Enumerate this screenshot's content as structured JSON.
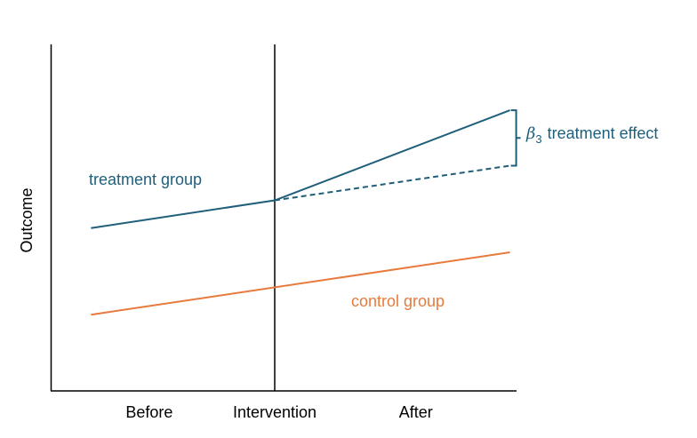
{
  "chart_data": {
    "type": "line",
    "title": "",
    "xlabel": "",
    "ylabel": "Outcome",
    "categories": [
      "Before",
      "Intervention",
      "After"
    ],
    "x_range": [
      0,
      2
    ],
    "y_range": [
      0,
      10
    ],
    "grid": false,
    "intervention_marker": 1,
    "series": [
      {
        "name": "treatment group",
        "color": "#1f5f7a",
        "style": "solid",
        "points": [
          [
            0.18,
            4.7
          ],
          [
            1,
            5.5
          ],
          [
            2.05,
            8.1
          ]
        ]
      },
      {
        "name": "",
        "color": "#1f5f7a",
        "style": "dashed",
        "points": [
          [
            1,
            5.5
          ],
          [
            2.05,
            6.5
          ]
        ]
      },
      {
        "name": "control group",
        "color": "#e87a3d",
        "style": "solid",
        "points": [
          [
            0.18,
            2.2
          ],
          [
            2.05,
            4.0
          ]
        ]
      }
    ],
    "annotations": {
      "treatment_label": "treatment group",
      "control_label": "control group",
      "effect_symbol": "β",
      "effect_subscript": "3",
      "effect_label": "treatment effect",
      "effect_color": "#1f5f7a",
      "effect_range": [
        6.5,
        8.1
      ],
      "effect_x": 2.05
    }
  }
}
